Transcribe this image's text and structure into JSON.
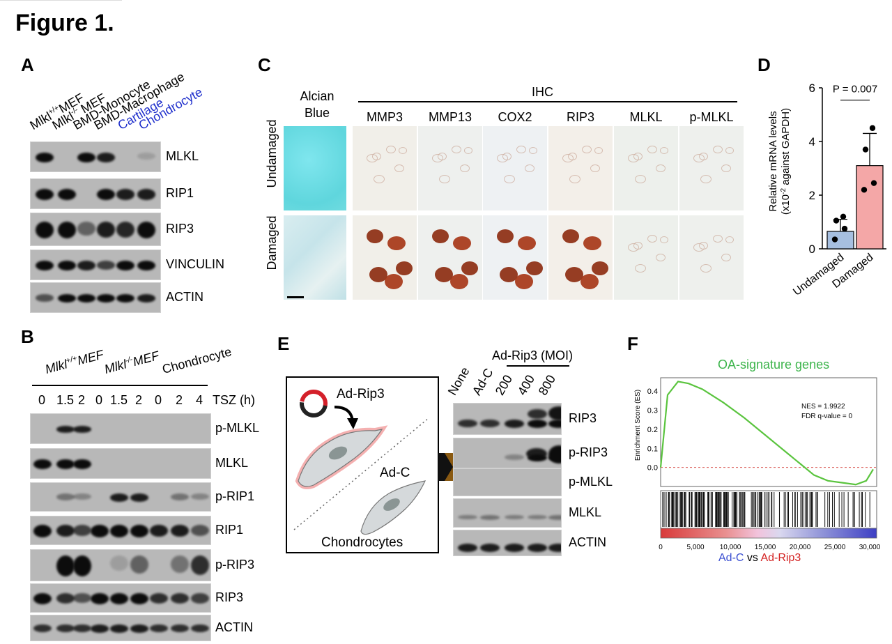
{
  "figure_title": "Figure 1.",
  "panels": {
    "A": {
      "label": "A",
      "columns": [
        {
          "base": "Mlkl",
          "sup": "+/+",
          "rest": "MEF"
        },
        {
          "base": "Mlkl",
          "sup": "-/-",
          "rest": " MEF"
        },
        {
          "base": "BMD-Monocyte",
          "sup": "",
          "rest": ""
        },
        {
          "base": "BMD-Macrophage",
          "sup": "",
          "rest": ""
        },
        {
          "base": "Cartilage",
          "sup": "",
          "rest": ""
        },
        {
          "base": "Chondrocyte",
          "sup": "",
          "rest": ""
        }
      ],
      "rows": [
        "MLKL",
        "RIP1",
        "RIP3",
        "VINCULIN",
        "ACTIN"
      ]
    },
    "B": {
      "label": "B",
      "groups": [
        {
          "base": "Mlkl",
          "sup": "+/+",
          "rest": "MEF"
        },
        {
          "base": "Mlkl",
          "sup": "-/-",
          "rest": "MEF"
        },
        {
          "base": "Chondrocyte",
          "sup": "",
          "rest": ""
        }
      ],
      "timepoints": [
        "0",
        "1.5",
        "2",
        "0",
        "1.5",
        "2",
        "0",
        "2",
        "4"
      ],
      "time_label": "TSZ (h)",
      "rows": [
        "p-MLKL",
        "MLKL",
        "p-RIP1",
        "RIP1",
        "p-RIP3",
        "RIP3",
        "ACTIN"
      ]
    },
    "C": {
      "label": "C",
      "alcian_line1": "Alcian",
      "alcian_line2": "Blue",
      "ihc_label": "IHC",
      "columns": [
        "MMP3",
        "MMP13",
        "COX2",
        "RIP3",
        "MLKL",
        "p-MLKL"
      ],
      "rows": [
        "Undamaged",
        "Damaged"
      ]
    },
    "D": {
      "label": "D",
      "p_value": "P = 0.007",
      "ylabel_line1": "Relative mRNA levels",
      "ylabel_line2_pre": "(x10",
      "ylabel_sup": "-2",
      "ylabel_line2_post": " against GAPDH)",
      "chart_data": {
        "type": "bar",
        "categories": [
          "Undamaged",
          "Damaged"
        ],
        "values": [
          0.65,
          3.1
        ],
        "errors": [
          0.45,
          1.2
        ],
        "points": [
          [
            1.2,
            1.05,
            0.75,
            0.35
          ],
          [
            4.5,
            3.7,
            2.45,
            2.2
          ]
        ],
        "colors": [
          "#a6bfe0",
          "#f4a7a7"
        ],
        "ylim": [
          0,
          6
        ],
        "yticks": [
          0,
          2,
          4,
          6
        ]
      }
    },
    "E": {
      "label": "E",
      "vector_title": "Ad-Rip3 (MOI)",
      "lanes": [
        "None",
        "Ad-C",
        "200",
        "400",
        "800"
      ],
      "rows": [
        "RIP3",
        "p-RIP3",
        "p-MLKL",
        "MLKL",
        "ACTIN"
      ],
      "schematic": {
        "adrip3": "Ad-Rip3",
        "adc": "Ad-C",
        "cells": "Chondrocytes"
      }
    },
    "F": {
      "label": "F",
      "title": "OA-signature genes",
      "ylabel": "Enrichment Score (ES)",
      "nes": "NES = 1.9922",
      "fdr": "FDR q-value = 0",
      "legend_left": "Ad-C",
      "legend_mid": " vs ",
      "legend_right": "Ad-Rip3",
      "chart_data": {
        "type": "line",
        "x": [
          0,
          1000,
          2500,
          4000,
          6000,
          9000,
          12000,
          15000,
          18000,
          20000,
          22000,
          24000,
          26000,
          28000,
          29500,
          30500
        ],
        "y": [
          0.0,
          0.38,
          0.45,
          0.44,
          0.41,
          0.34,
          0.26,
          0.17,
          0.08,
          0.02,
          -0.04,
          -0.07,
          -0.08,
          -0.09,
          -0.07,
          -0.01
        ],
        "yticks": [
          0.0,
          0.1,
          0.2,
          0.3,
          0.4
        ],
        "xticks": [
          "0",
          "5,000",
          "10,000",
          "15,000",
          "20,000",
          "25,000",
          "30,000"
        ],
        "ylim": [
          -0.1,
          0.47
        ],
        "xlim": [
          0,
          31000
        ],
        "color": "#5ac43e"
      }
    }
  }
}
